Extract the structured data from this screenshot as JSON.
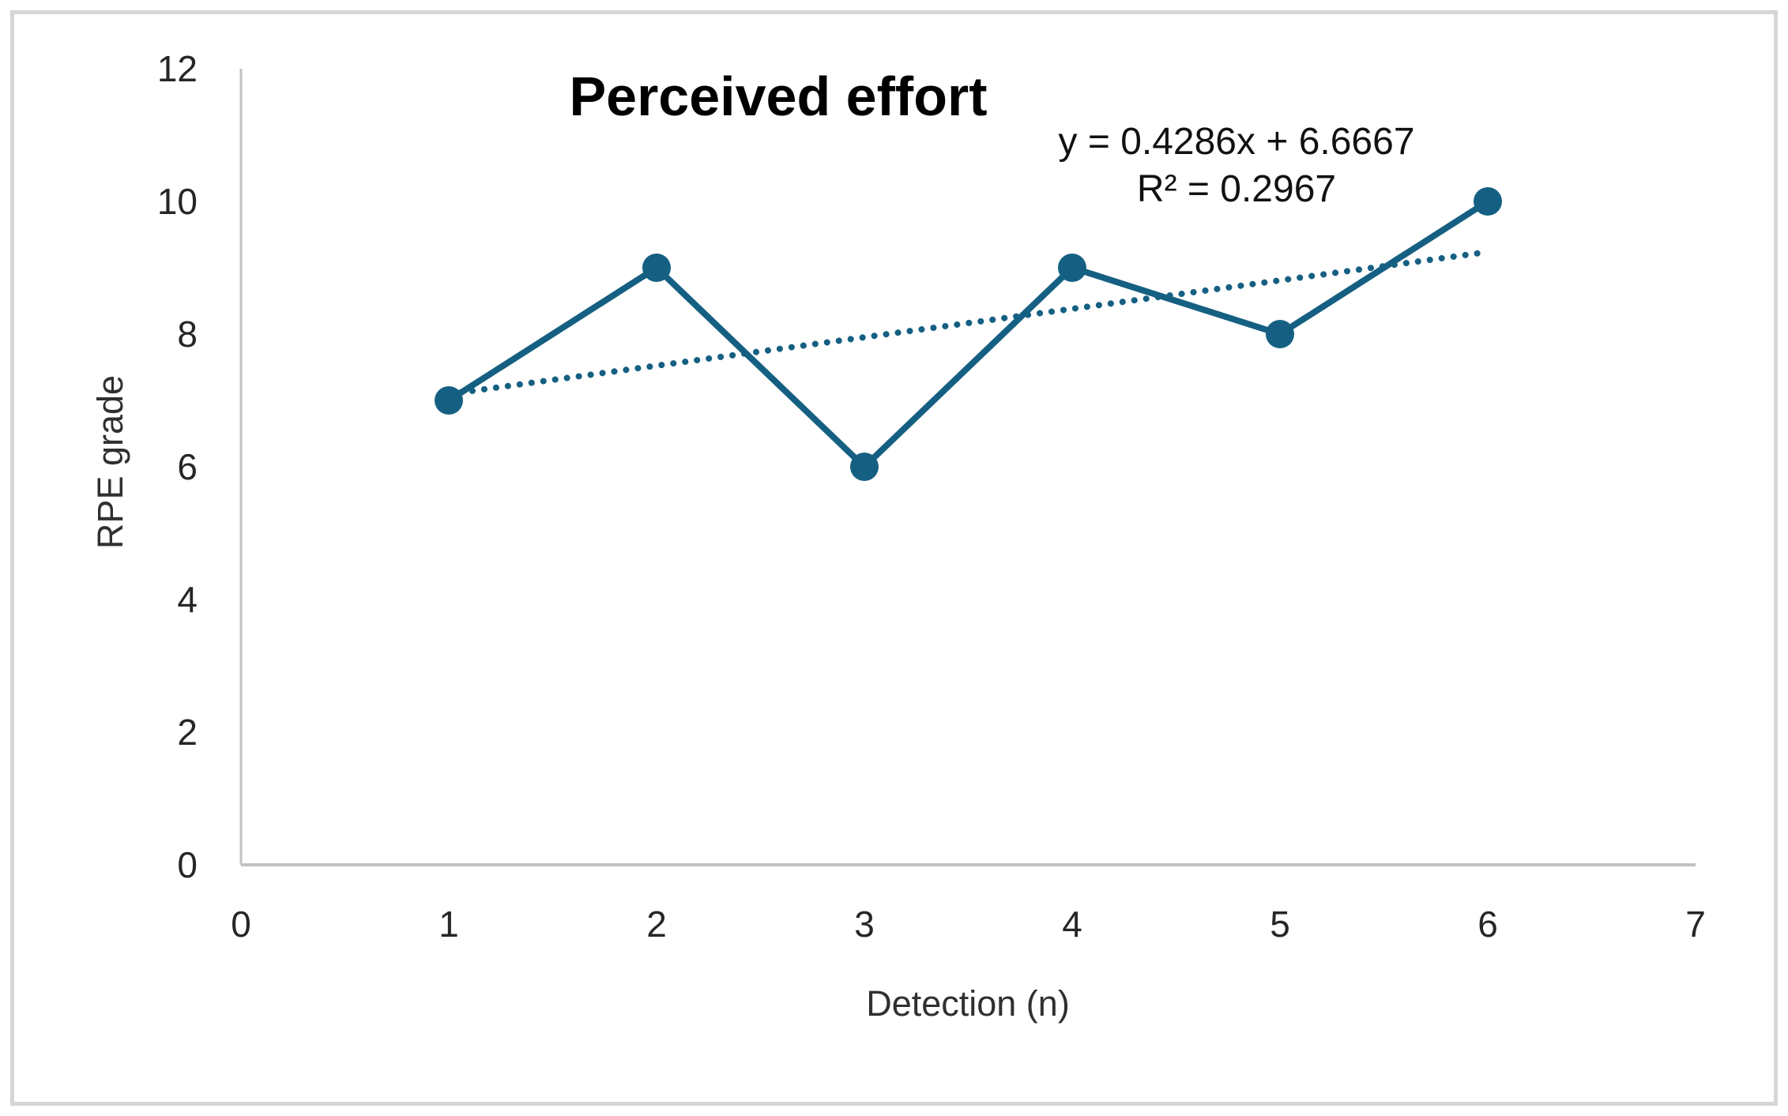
{
  "window": {
    "background": "#ffffff",
    "frame_border_color": "#d6d6d6"
  },
  "chart_data": {
    "type": "line",
    "title": "Perceived effort",
    "xlabel": "Detection (n)",
    "ylabel": "RPE grade",
    "x": [
      1,
      2,
      3,
      4,
      5,
      6
    ],
    "y": [
      7,
      9,
      6,
      9,
      8,
      10
    ],
    "xlim": [
      0,
      7
    ],
    "ylim": [
      0,
      12
    ],
    "x_ticks": [
      0,
      1,
      2,
      3,
      4,
      5,
      6,
      7
    ],
    "y_ticks": [
      0,
      2,
      4,
      6,
      8,
      10,
      12
    ],
    "grid": false,
    "legend": false,
    "marker": "circle",
    "series_color": "#156082",
    "axis_line_color": "#c2c2c2",
    "trendline": {
      "style": "dotted",
      "slope": 0.4286,
      "intercept": 6.6667,
      "x_start": 1,
      "x_end": 6,
      "equation_label": "y = 0.4286x + 6.6667",
      "r2": 0.2967,
      "r2_label": "R² = 0.2967"
    }
  }
}
